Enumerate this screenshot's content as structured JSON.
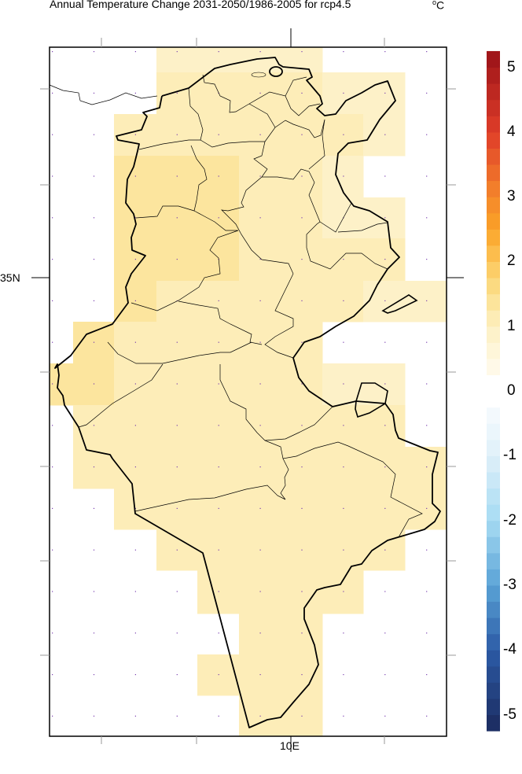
{
  "title": "Annual Temperature Change 2031-2050/1986-2005 for rcp4.5",
  "units": "C",
  "units_prefix": "o",
  "axis_labels": {
    "lat": "35N",
    "lon": "10E"
  },
  "colorbar": {
    "tick_labels": [
      "5",
      "4",
      "3",
      "2",
      "1",
      "0",
      "-1",
      "-2",
      "-3",
      "-4",
      "-5"
    ],
    "tick_values": [
      5,
      4,
      3,
      2,
      1,
      0,
      -1,
      -2,
      -3,
      -4,
      -5
    ],
    "range": [
      -5.25,
      5.25
    ],
    "step": 0.25,
    "colormap_anchors": [
      {
        "v": -5.25,
        "c": "#1b2a5e"
      },
      {
        "v": -4,
        "c": "#2c5ba6"
      },
      {
        "v": -3,
        "c": "#5aa3d6"
      },
      {
        "v": -2,
        "c": "#a6dbf3"
      },
      {
        "v": -1,
        "c": "#dff0f9"
      },
      {
        "v": -0.25,
        "c": "#f7fbfe"
      },
      {
        "v": 0,
        "c": "#ffffff"
      },
      {
        "v": 0.25,
        "c": "#fffbf0"
      },
      {
        "v": 1,
        "c": "#fdf0c2"
      },
      {
        "v": 1.5,
        "c": "#fbe08e"
      },
      {
        "v": 2,
        "c": "#fcc65a"
      },
      {
        "v": 2.5,
        "c": "#faa327"
      },
      {
        "v": 3,
        "c": "#f5872b"
      },
      {
        "v": 4,
        "c": "#df3d29"
      },
      {
        "v": 5.25,
        "c": "#9a1218"
      }
    ]
  },
  "grid_values_north_to_south": [
    [
      null,
      null,
      null,
      0.9,
      0.9,
      0.9,
      0.9,
      null,
      null,
      null
    ],
    [
      null,
      null,
      null,
      1.1,
      1.1,
      1.1,
      1.1,
      0.9,
      0.9,
      null
    ],
    [
      null,
      null,
      1.1,
      1.1,
      1.1,
      1.1,
      1.1,
      1.1,
      0.9,
      null
    ],
    [
      null,
      null,
      1.35,
      1.35,
      1.35,
      1.1,
      1.1,
      0.9,
      null,
      null
    ],
    [
      null,
      null,
      1.35,
      1.35,
      1.35,
      1.1,
      1.1,
      0.9,
      0.9,
      null
    ],
    [
      null,
      null,
      1.35,
      1.35,
      1.35,
      1.1,
      1.1,
      1.1,
      1.1,
      null
    ],
    [
      null,
      null,
      1.35,
      1.1,
      1.1,
      1.1,
      1.1,
      1.1,
      0.9,
      0.9
    ],
    [
      null,
      1.35,
      1.1,
      1.1,
      1.1,
      1.1,
      1.1,
      null,
      null,
      null
    ],
    [
      1.35,
      1.35,
      1.1,
      1.1,
      1.1,
      1.1,
      1.1,
      0.9,
      0.9,
      null
    ],
    [
      null,
      1.1,
      1.1,
      1.1,
      1.1,
      1.1,
      1.1,
      1.1,
      1.1,
      null
    ],
    [
      null,
      1.1,
      1.1,
      1.1,
      1.1,
      1.1,
      1.1,
      1.1,
      1.1,
      1.1
    ],
    [
      null,
      null,
      1.1,
      1.1,
      1.1,
      1.1,
      1.1,
      1.1,
      1.1,
      1.1
    ],
    [
      null,
      null,
      null,
      1.1,
      1.1,
      1.1,
      1.1,
      1.1,
      1.1,
      null
    ],
    [
      null,
      null,
      null,
      null,
      1.1,
      1.1,
      1.1,
      1.1,
      null,
      null
    ],
    [
      null,
      null,
      null,
      null,
      null,
      1.1,
      1.1,
      null,
      null,
      null
    ],
    [
      null,
      null,
      null,
      null,
      1.1,
      1.1,
      1.1,
      null,
      null,
      null
    ],
    [
      null,
      null,
      null,
      null,
      null,
      1.1,
      1.1,
      null,
      null,
      null
    ]
  ]
}
